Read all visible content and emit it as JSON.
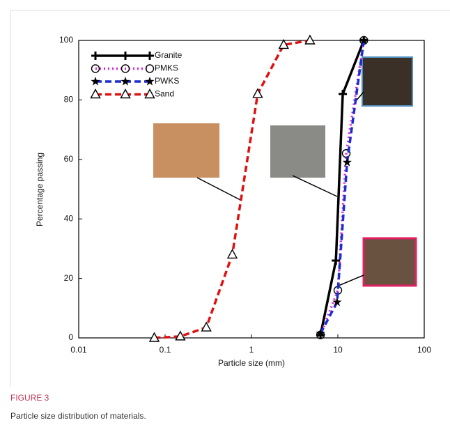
{
  "chart_data": {
    "type": "line",
    "xlabel": "Particle size (mm)",
    "ylabel": "Percentage passing",
    "xscale": "log",
    "xlim": [
      0.01,
      100
    ],
    "xticks": [
      0.01,
      0.1,
      1,
      10,
      100
    ],
    "ylim": [
      0,
      100
    ],
    "yticks": [
      0,
      20,
      40,
      60,
      80,
      100
    ],
    "legend": "upper left",
    "series": [
      {
        "name": "Granite",
        "color": "#000000",
        "linestyle": "solid",
        "marker": "plus",
        "x": [
          6.3,
          9.5,
          11.4,
          20
        ],
        "values": [
          1,
          26,
          82,
          100
        ]
      },
      {
        "name": "PMKS",
        "color": "#e020e0",
        "linestyle": "dotted",
        "marker": "circle",
        "x": [
          6.3,
          10,
          12.5,
          20
        ],
        "values": [
          1,
          16,
          62,
          100
        ]
      },
      {
        "name": "PWKS",
        "color": "#1a2fd0",
        "linestyle": "dashed",
        "marker": "star",
        "x": [
          6.3,
          9.8,
          12.8,
          20
        ],
        "values": [
          1.5,
          12,
          59,
          100
        ]
      },
      {
        "name": "Sand",
        "color": "#e01010",
        "linestyle": "dashed",
        "marker": "triangle",
        "x": [
          0.075,
          0.15,
          0.3,
          0.6,
          1.18,
          2.36,
          4.75
        ],
        "values": [
          0,
          0.5,
          3.5,
          28,
          82,
          98.5,
          100
        ]
      }
    ]
  },
  "caption": {
    "label": "FIGURE 3",
    "text": "Particle size distribution of materials."
  }
}
